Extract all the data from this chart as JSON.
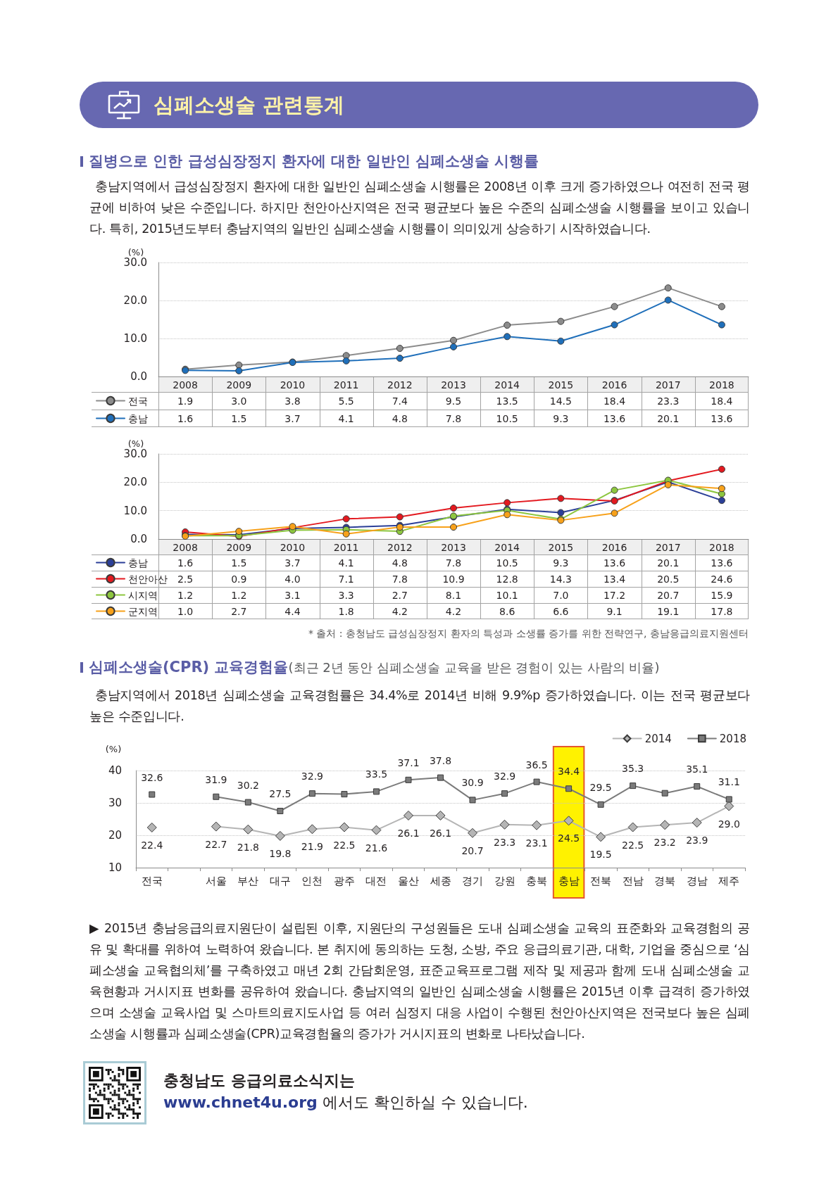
{
  "chart_data": [
    {
      "type": "line",
      "title": "심폐소생술 관련통계",
      "subtitle": "질병으로 인한 급성심장정지 환자에 대한 일반인 심폐소생술 시행률",
      "annotations": [
        "충남지역에서 급성심장정지 환자에 대한 일반인 심폐소생술 시행률은 2008년 이후 크게 증가하였으나 여전히 전국 평균에 비하여 낮은 수준입니다. 하지만 천안아산지역은 전국 평균보다 높은 수준의 심폐소생술 시행률을 보이고 있습니다. 특히, 2015년도부터 충남지역의 일반인 심폐소생술 시행률이 의미있게 상승하기 시작하였습니다."
      ],
      "ylabel": "(%)",
      "categories": [
        "2008",
        "2009",
        "2010",
        "2011",
        "2012",
        "2013",
        "2014",
        "2015",
        "2016",
        "2017",
        "2018"
      ],
      "series": [
        {
          "name": "전국",
          "color": "#8c8c8c",
          "values": [
            1.9,
            3.0,
            3.8,
            5.5,
            7.4,
            9.5,
            13.5,
            14.5,
            18.4,
            23.3,
            18.4
          ],
          "value_labels": [
            "1.9",
            "3.0",
            "3.8",
            "5.5",
            "7.4",
            "9.5",
            "13.5",
            "14.5",
            "18.4",
            "23.3",
            "18.4"
          ]
        },
        {
          "name": "충남",
          "color": "#1f6fba",
          "values": [
            1.6,
            1.5,
            3.7,
            4.1,
            4.8,
            7.8,
            10.5,
            9.3,
            13.6,
            20.1,
            13.6
          ],
          "value_labels": [
            "1.6",
            "1.5",
            "3.7",
            "4.1",
            "4.8",
            "7.8",
            "10.5",
            "9.3",
            "13.6",
            "20.1",
            "13.6"
          ]
        }
      ],
      "ylim": [
        0,
        30
      ],
      "yticks": [
        {
          "value": 0,
          "label": "0.0"
        },
        {
          "value": 10,
          "label": "10.0"
        },
        {
          "value": 20,
          "label": "20.0"
        },
        {
          "value": 30,
          "label": "30.0"
        }
      ],
      "grid": "y",
      "legend": "bottom left",
      "marker": "circle",
      "line_style": "solid"
    },
    {
      "type": "line",
      "annotations": [
        "* 출처 : 충청남도 급성심장정지 환자의 특성과 소생률 증가를 위한 전략연구, 충남응급의료지원센터"
      ],
      "ylabel": "(%)",
      "categories": [
        "2008",
        "2009",
        "2010",
        "2011",
        "2012",
        "2013",
        "2014",
        "2015",
        "2016",
        "2017",
        "2018"
      ],
      "series": [
        {
          "name": "충남",
          "color": "#2b3f98",
          "values": [
            1.6,
            1.5,
            3.7,
            4.1,
            4.8,
            7.8,
            10.5,
            9.3,
            13.6,
            20.1,
            13.6
          ],
          "value_labels": [
            "1.6",
            "1.5",
            "3.7",
            "4.1",
            "4.8",
            "7.8",
            "10.5",
            "9.3",
            "13.6",
            "20.1",
            "13.6"
          ]
        },
        {
          "name": "천안아산",
          "color": "#e3191f",
          "values": [
            2.5,
            0.9,
            4.0,
            7.1,
            7.8,
            10.9,
            12.8,
            14.3,
            13.4,
            20.5,
            24.6
          ],
          "value_labels": [
            "2.5",
            "0.9",
            "4.0",
            "7.1",
            "7.8",
            "10.9",
            "12.8",
            "14.3",
            "13.4",
            "20.5",
            "24.6"
          ]
        },
        {
          "name": "시지역",
          "color": "#8dc63f",
          "values": [
            1.2,
            1.2,
            3.1,
            3.3,
            2.7,
            8.1,
            10.1,
            7.0,
            17.2,
            20.7,
            15.9
          ],
          "value_labels": [
            "1.2",
            "1.2",
            "3.1",
            "3.3",
            "2.7",
            "8.1",
            "10.1",
            "7.0",
            "17.2",
            "20.7",
            "15.9"
          ]
        },
        {
          "name": "군지역",
          "color": "#f7a11a",
          "values": [
            1.0,
            2.7,
            4.4,
            1.8,
            4.2,
            4.2,
            8.6,
            6.6,
            9.1,
            19.1,
            17.8
          ],
          "value_labels": [
            "1.0",
            "2.7",
            "4.4",
            "1.8",
            "4.2",
            "4.2",
            "8.6",
            "6.6",
            "9.1",
            "19.1",
            "17.8"
          ]
        }
      ],
      "ylim": [
        0,
        30
      ],
      "yticks": [
        {
          "value": 0,
          "label": "0.0"
        },
        {
          "value": 10,
          "label": "10.0"
        },
        {
          "value": 20,
          "label": "20.0"
        },
        {
          "value": 30,
          "label": "30.0"
        }
      ],
      "grid": "y",
      "legend": "bottom left",
      "marker": "circle",
      "line_style": "solid"
    },
    {
      "type": "line",
      "title": "심폐소생술(CPR) 교육경험율",
      "subtitle": "(최근 2년 동안 심폐소생술 교육을 받은 경험이 있는 사람의 비율)",
      "annotations": [
        "충남지역에서 2018년 심폐소생술 교육경험률은 34.4%로 2014년 비해 9.9%p 증가하였습니다. 이는 전국 평균보다 높은 수준입니다.",
        "▶ 2015년 충남응급의료지원단이 설립된 이후, 지원단의 구성원들은 도내 심폐소생술 교육의 표준화와 교육경험의 공유 및 확대를 위하여 노력하여 왔습니다. 본 취지에 동의하는 도청, 소방, 주요 응급의료기관, 대학, 기업을 중심으로 ‘심폐소생술 교육협의체’를 구축하였고 매년 2회 간담회운영, 표준교육프로그램 제작 및 제공과 함께 도내 심폐소생술 교육현황과 거시지표 변화를 공유하여 왔습니다. 충남지역의 일반인 심폐소생술 시행률은 2015년 이후 급격히 증가하였으며 소생술 교육사업 및 스마트의료지도사업 등 여러 심정지 대응 사업이 수행된 천안아산지역은 전국보다 높은 심폐소생술 시행률과 심폐소생술(CPR)교육경험율의 증가가 거시지표의 변화로 나타났습니다.",
        "충청남도 응급의료소식지는",
        "www.chnet4u.org",
        "에서도 확인하실 수 있습니다."
      ],
      "ylabel": "(%)",
      "categories": [
        "전국",
        null,
        "서울",
        "부산",
        "대구",
        "인천",
        "광주",
        "대전",
        "울산",
        "세종",
        "경기",
        "강원",
        "충북",
        "충남",
        "전북",
        "전남",
        "경북",
        "경남",
        "제주"
      ],
      "series": [
        {
          "name": "2014",
          "color": "#b5b5b5",
          "marker": "diamond",
          "values": [
            22.4,
            null,
            22.7,
            21.8,
            19.8,
            21.9,
            22.5,
            21.6,
            26.1,
            26.1,
            20.7,
            23.3,
            23.1,
            24.5,
            19.5,
            22.5,
            23.2,
            23.9,
            29.0
          ],
          "value_labels": [
            "22.4",
            null,
            "22.7",
            "21.8",
            "19.8",
            "21.9",
            "22.5",
            "21.6",
            "26.1",
            "26.1",
            "20.7",
            "23.3",
            "23.1",
            "24.5",
            "19.5",
            "22.5",
            "23.2",
            "23.9",
            "29.0"
          ]
        },
        {
          "name": "2018",
          "color": "#7b7b7b",
          "marker": "square",
          "values": [
            32.6,
            null,
            31.9,
            30.2,
            27.5,
            32.9,
            32.7,
            33.5,
            37.1,
            37.8,
            30.9,
            32.9,
            36.5,
            34.4,
            29.5,
            35.3,
            33.0,
            35.1,
            31.1
          ],
          "value_labels": [
            "32.6",
            null,
            "31.9",
            "30.2",
            "27.5",
            "32.9",
            null,
            "33.5",
            "37.1",
            "37.8",
            "30.9",
            "32.9",
            "36.5",
            "34.4",
            "29.5",
            "35.3",
            null,
            "35.1",
            "31.1"
          ]
        }
      ],
      "ylim": [
        10,
        40
      ],
      "yticks": [
        10,
        20,
        30,
        40
      ],
      "grid": "y",
      "legend": "top right",
      "line_style": "solid",
      "bands": [
        {
          "axis": "x",
          "from": "충남",
          "to": "충남",
          "color": "#fff200"
        }
      ]
    }
  ]
}
